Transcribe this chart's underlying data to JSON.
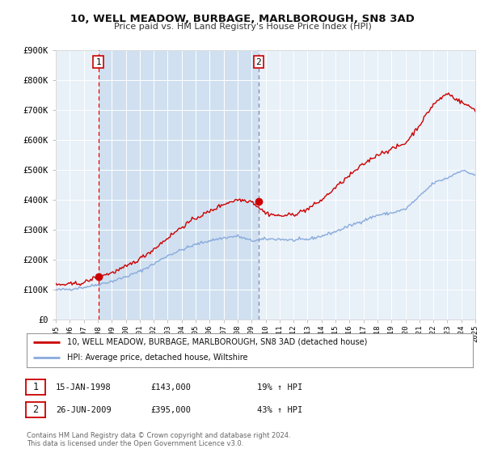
{
  "title1": "10, WELL MEADOW, BURBAGE, MARLBOROUGH, SN8 3AD",
  "title2": "Price paid vs. HM Land Registry's House Price Index (HPI)",
  "legend_label1": "10, WELL MEADOW, BURBAGE, MARLBOROUGH, SN8 3AD (detached house)",
  "legend_label2": "HPI: Average price, detached house, Wiltshire",
  "sale1_date": "15-JAN-1998",
  "sale1_price": "£143,000",
  "sale1_hpi": "19% ↑ HPI",
  "sale2_date": "26-JUN-2009",
  "sale2_price": "£395,000",
  "sale2_hpi": "43% ↑ HPI",
  "footnote1": "Contains HM Land Registry data © Crown copyright and database right 2024.",
  "footnote2": "This data is licensed under the Open Government Licence v3.0.",
  "sale1_year": 1998.04,
  "sale1_value": 143000,
  "sale2_year": 2009.49,
  "sale2_value": 395000,
  "line1_color": "#cc0000",
  "line2_color": "#88aadd",
  "plot_bg": "#e8f0f8",
  "shade_bg": "#d0e0f0",
  "ylim": [
    0,
    900000
  ],
  "xlim": [
    1995,
    2025
  ],
  "ylabel_ticks": [
    0,
    100000,
    200000,
    300000,
    400000,
    500000,
    600000,
    700000,
    800000,
    900000
  ],
  "ylabel_labels": [
    "£0",
    "£100K",
    "£200K",
    "£300K",
    "£400K",
    "£500K",
    "£600K",
    "£700K",
    "£800K",
    "£900K"
  ]
}
